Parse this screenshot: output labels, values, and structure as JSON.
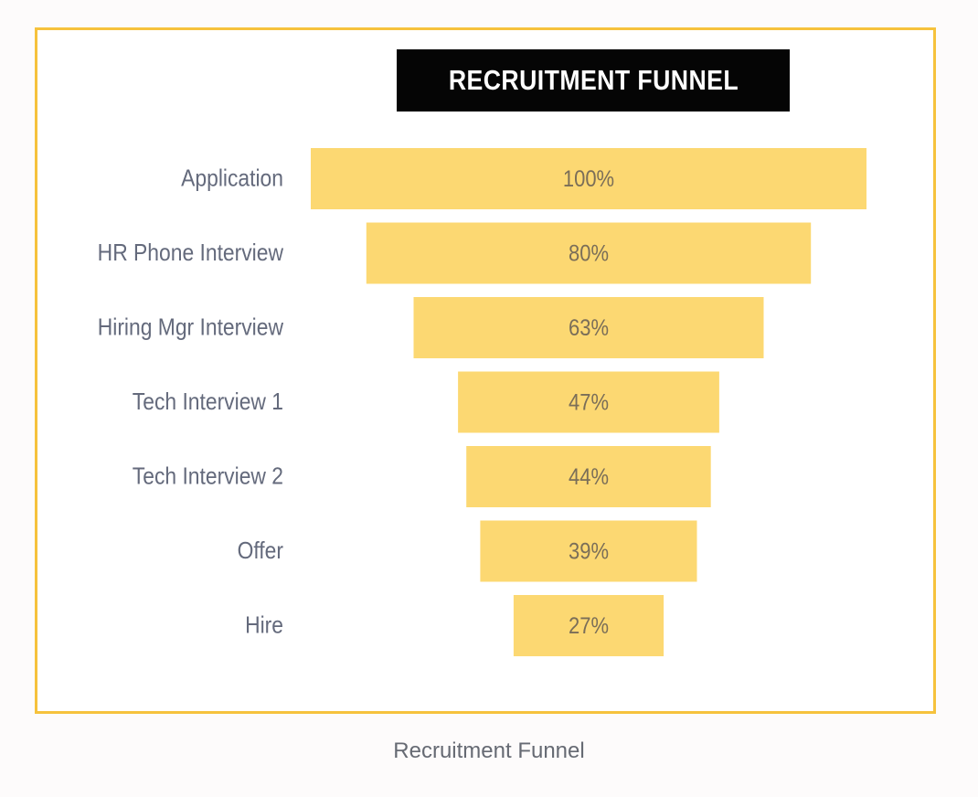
{
  "colors": {
    "frame_border": "#f6c23c",
    "bar_fill": "#fcd872",
    "title_background": "#050505",
    "title_text": "#ffffff",
    "category_text": "#646a7c",
    "value_text": "#7a6e58",
    "caption_text": "#666a73"
  },
  "chart_data": {
    "type": "bar",
    "subtype": "funnel",
    "orientation": "horizontal",
    "title": "RECRUITMENT FUNNEL",
    "categories": [
      "Application",
      "HR Phone Interview",
      "Hiring Mgr Interview",
      "Tech Interview 1",
      "Tech Interview 2",
      "Offer",
      "Hire"
    ],
    "values": [
      100,
      80,
      63,
      47,
      44,
      39,
      27
    ],
    "value_labels": [
      "100%",
      "80%",
      "63%",
      "47%",
      "44%",
      "39%",
      "27%"
    ],
    "value_unit": "%",
    "xlim": [
      0,
      100
    ],
    "grid": false,
    "legend": "none"
  },
  "caption": "Recruitment Funnel"
}
